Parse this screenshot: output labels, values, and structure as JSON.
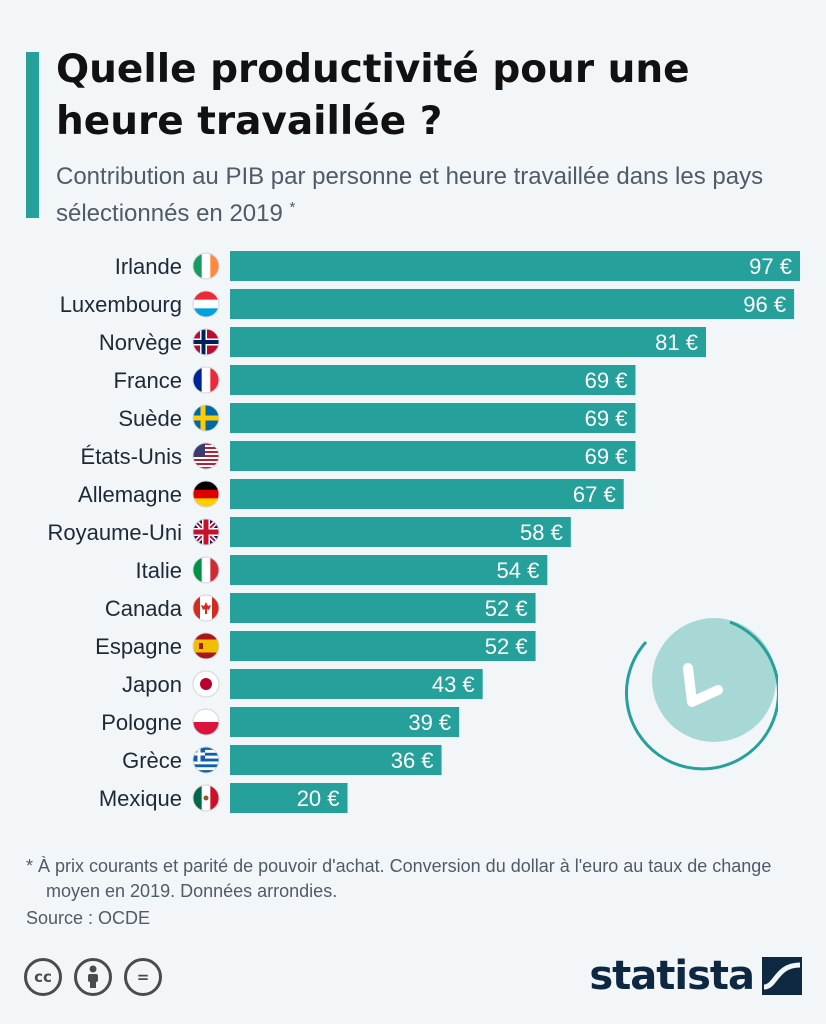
{
  "header": {
    "title": "Quelle productivité pour une heure travaillée ?",
    "subtitle": "Contribution au PIB par personne et heure travaillée dans les pays sélectionnés en 2019",
    "subtitle_mark": "*"
  },
  "chart_data": {
    "type": "bar",
    "orientation": "horizontal",
    "title": "Quelle productivité pour une heure travaillée ?",
    "categories": [
      "Irlande",
      "Luxembourg",
      "Norvège",
      "France",
      "Suède",
      "États-Unis",
      "Allemagne",
      "Royaume-Uni",
      "Italie",
      "Canada",
      "Espagne",
      "Japon",
      "Pologne",
      "Grèce",
      "Mexique"
    ],
    "values": [
      97,
      96,
      81,
      69,
      69,
      69,
      67,
      58,
      54,
      52,
      52,
      43,
      39,
      36,
      20
    ],
    "value_labels": [
      "97 €",
      "96 €",
      "81 €",
      "69 €",
      "69 €",
      "69 €",
      "67 €",
      "58 €",
      "54 €",
      "52 €",
      "52 €",
      "43 €",
      "39 €",
      "36 €",
      "20 €"
    ],
    "unit": "€",
    "xlim": [
      0,
      97
    ],
    "grid": false,
    "bar_color": "#26a09b",
    "flag_icons": [
      "ireland-flag-icon",
      "luxembourg-flag-icon",
      "norway-flag-icon",
      "france-flag-icon",
      "sweden-flag-icon",
      "usa-flag-icon",
      "germany-flag-icon",
      "uk-flag-icon",
      "italy-flag-icon",
      "canada-flag-icon",
      "spain-flag-icon",
      "japan-flag-icon",
      "poland-flag-icon",
      "greece-flag-icon",
      "mexico-flag-icon"
    ]
  },
  "footer": {
    "footnote": "* À prix courants et parité de pouvoir d'achat. Conversion du dollar à l'euro au taux de change moyen en 2019. Données arrondies.",
    "source": "Source : OCDE",
    "brand": "statista",
    "license_icons": [
      "cc-icon",
      "attribution-icon",
      "no-derivatives-icon"
    ],
    "cc_text": "cc",
    "nd_text": "="
  },
  "colors": {
    "accent": "#26a09b",
    "brand": "#0d2840",
    "decoration": "#a8d8d6"
  }
}
